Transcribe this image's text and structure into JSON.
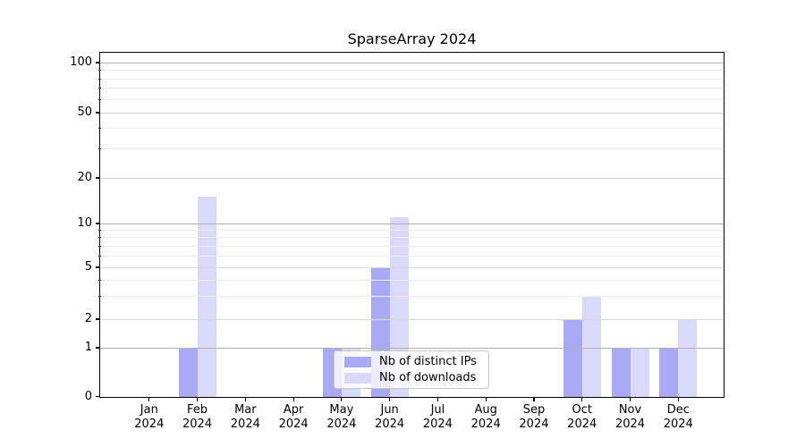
{
  "chart_data": {
    "type": "bar",
    "title": "SparseArray 2024",
    "x_tick_year": "2024",
    "months": [
      "Jan",
      "Feb",
      "Mar",
      "Apr",
      "May",
      "Jun",
      "Jul",
      "Aug",
      "Sep",
      "Oct",
      "Nov",
      "Dec"
    ],
    "series": [
      {
        "name": "Nb of distinct IPs",
        "color": "#a9a9f4",
        "values": [
          0,
          1,
          0,
          0,
          1,
          5,
          0,
          0,
          0,
          2,
          1,
          1
        ]
      },
      {
        "name": "Nb of downloads",
        "color": "#d9d9f9",
        "values": [
          0,
          15,
          0,
          0,
          1,
          11,
          0,
          0,
          0,
          3,
          1,
          2
        ]
      }
    ],
    "y_axis": {
      "scale": "symlog",
      "ticks": [
        0,
        1,
        2,
        5,
        10,
        20,
        50,
        100
      ],
      "minor_ticks": [
        3,
        4,
        6,
        7,
        8,
        9,
        30,
        40,
        60,
        70,
        80,
        90
      ],
      "range": [
        0,
        115
      ]
    },
    "grid": true,
    "legend": {
      "position": "lower center",
      "border_color": "#c9c9c9"
    }
  }
}
